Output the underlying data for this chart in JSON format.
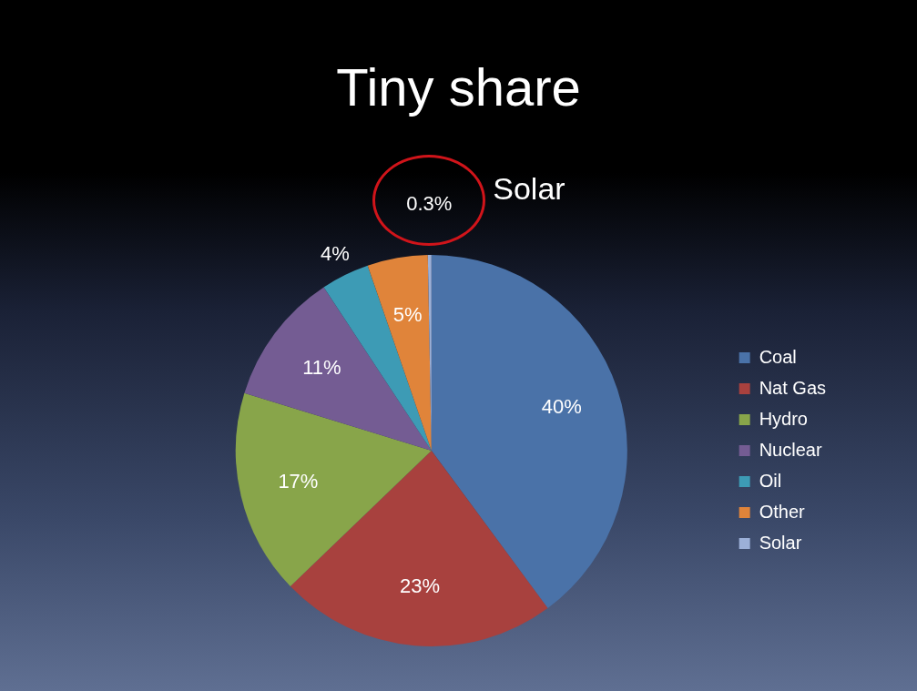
{
  "chart_data": {
    "type": "pie",
    "title": "Tiny share",
    "categories": [
      "Coal",
      "Nat Gas",
      "Hydro",
      "Nuclear",
      "Oil",
      "Other",
      "Solar"
    ],
    "values": [
      40,
      23,
      17,
      11,
      4,
      5,
      0.3
    ],
    "value_labels": [
      "40%",
      "23%",
      "17%",
      "11%",
      "4%",
      "5%",
      "0.3%"
    ],
    "colors": [
      "#4a72a8",
      "#a8413e",
      "#88a54a",
      "#745c93",
      "#3d9bb5",
      "#e0843a",
      "#9cb0d8"
    ],
    "legend": "right",
    "annotations": [
      "Solar"
    ]
  }
}
